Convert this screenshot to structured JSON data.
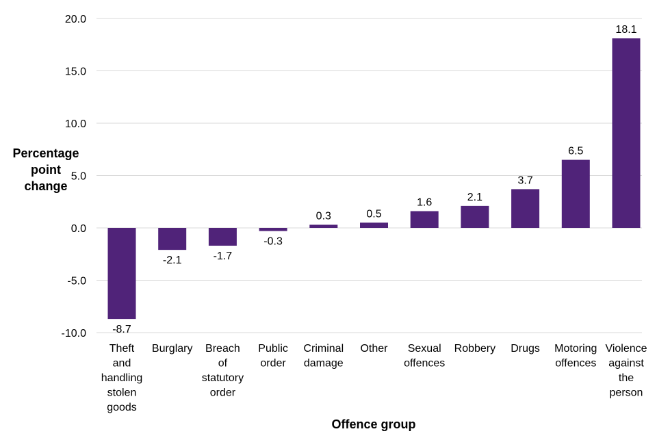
{
  "chart_data": {
    "type": "bar",
    "xlabel": "Offence group",
    "ylabel": "Percentage point\nchange",
    "ylim": [
      -10,
      20
    ],
    "yticks": [
      "20.0",
      "15.0",
      "10.0",
      "5.0",
      "0.0",
      "-5.0",
      "-10.0"
    ],
    "ytick_values": [
      20,
      15,
      10,
      5,
      0,
      -5,
      -10
    ],
    "grid": true,
    "bar_color": "#502379",
    "categories": [
      "Theft\nand\nhandling\nstolen\ngoods",
      "Burglary",
      "Breach\nof\nstatutory\norder",
      "Public\norder",
      "Criminal\ndamage",
      "Other",
      "Sexual\noffences",
      "Robbery",
      "Drugs",
      "Motoring\noffences",
      "Violence\nagainst\nthe\nperson"
    ],
    "values": [
      -8.7,
      -2.1,
      -1.7,
      -0.3,
      0.3,
      0.5,
      1.6,
      2.1,
      3.7,
      6.5,
      18.1
    ],
    "data_labels": [
      "-8.7",
      "-2.1",
      "-1.7",
      "-0.3",
      "0.3",
      "0.5",
      "1.6",
      "2.1",
      "3.7",
      "6.5",
      "18.1"
    ]
  }
}
